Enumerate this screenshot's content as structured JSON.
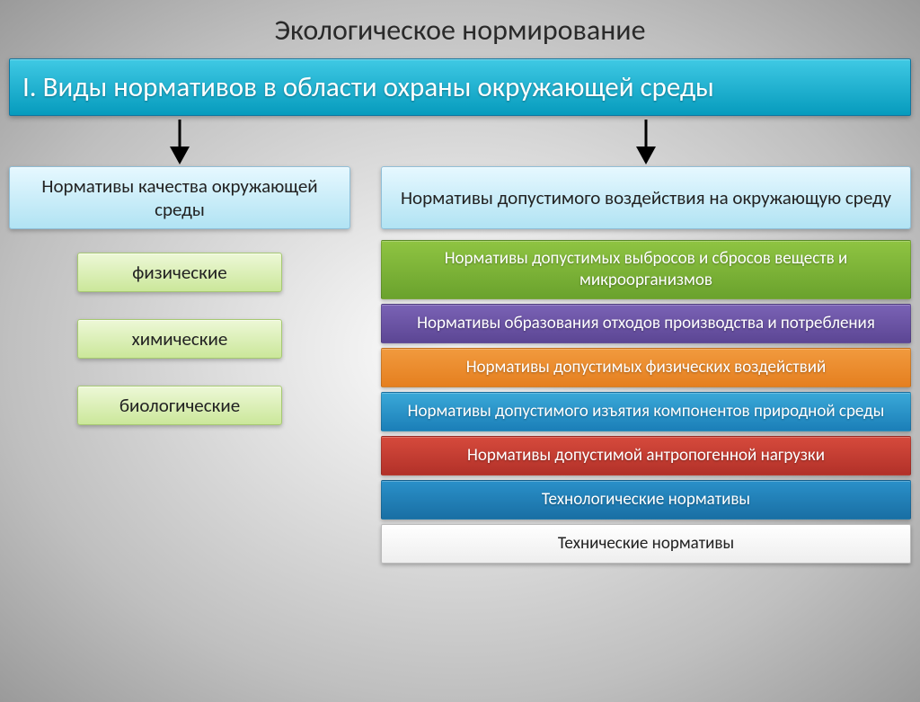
{
  "page_title": "Экологическое нормирование",
  "main_heading": "I. Виды нормативов в области охраны окружающей среды",
  "left": {
    "heading": "Нормативы качества окружающей среды",
    "items": [
      "физические",
      "химические",
      "биологические"
    ]
  },
  "right": {
    "heading": "Нормативы допустимого воздействия на окружающую среду",
    "bars": [
      {
        "label": "Нормативы допустимых выбросов и сбросов веществ и микроорганизмов",
        "bg": "linear-gradient(to bottom,#8fc442 0%,#6aa22d 100%)"
      },
      {
        "label": "Нормативы образования отходов производства и потребления",
        "bg": "linear-gradient(to bottom,#7a62b5 0%,#5c4694 100%)"
      },
      {
        "label": "Нормативы допустимых физических воздействий",
        "bg": "linear-gradient(to bottom,#f19a3e 0%,#e57f1f 100%)"
      },
      {
        "label": "Нормативы допустимого изъятия компонентов природной среды",
        "bg": "linear-gradient(to bottom,#3aa9d8 0%,#1b7fb8 100%)"
      },
      {
        "label": "Нормативы допустимой антропогенной нагрузки",
        "bg": "linear-gradient(to bottom,#d64a3c 0%,#b23129 100%)"
      },
      {
        "label": "Технологические нормативы",
        "bg": "linear-gradient(to bottom,#2a90c9 0%,#196fa4 100%)"
      },
      {
        "label": "Технические нормативы",
        "bg": "white"
      }
    ]
  },
  "arrow_color": "#000000"
}
